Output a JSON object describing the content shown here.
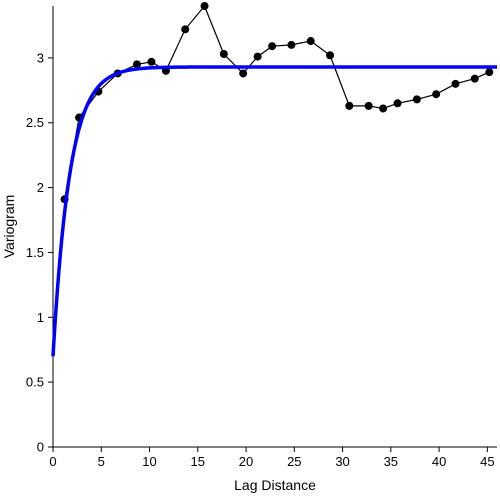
{
  "chart_data": {
    "type": "line",
    "title": "",
    "xlabel": "Lag Distance",
    "ylabel": "Variogram",
    "xlim": [
      0,
      46
    ],
    "ylim": [
      0,
      3.4
    ],
    "xticks": [
      0,
      5,
      10,
      15,
      20,
      25,
      30,
      35,
      40,
      45
    ],
    "yticks": [
      0,
      0.5,
      1,
      1.5,
      2,
      2.5,
      3
    ],
    "xtick_labels": [
      "0",
      "5",
      "10",
      "15",
      "20",
      "25",
      "30",
      "35",
      "40",
      "45"
    ],
    "ytick_labels": [
      "0",
      "0.5",
      "1",
      "1.5",
      "2",
      "2.5",
      "3"
    ],
    "grid": false,
    "legend": "none",
    "series": [
      {
        "kind": "empirical",
        "color": "#000000",
        "marker": "circle",
        "x": [
          1.2,
          2.7,
          4.7,
          6.7,
          8.7,
          10.2,
          11.7,
          13.7,
          15.7,
          17.7,
          19.7,
          21.2,
          22.7,
          24.7,
          26.7,
          28.7,
          30.7,
          32.7,
          34.2,
          35.7,
          37.7,
          39.7,
          41.7,
          43.7,
          45.2
        ],
        "y": [
          1.91,
          2.54,
          2.74,
          2.88,
          2.95,
          2.97,
          2.9,
          3.22,
          3.4,
          3.03,
          2.88,
          3.01,
          3.09,
          3.1,
          3.13,
          3.02,
          2.63,
          2.63,
          2.61,
          2.65,
          2.68,
          2.72,
          2.8,
          2.84,
          2.89
        ]
      },
      {
        "kind": "fitted-exponential-model",
        "color": "#0000ff",
        "nugget": 0.7,
        "sill": 2.93,
        "range_param": 1.75,
        "x_end": 46
      }
    ]
  }
}
